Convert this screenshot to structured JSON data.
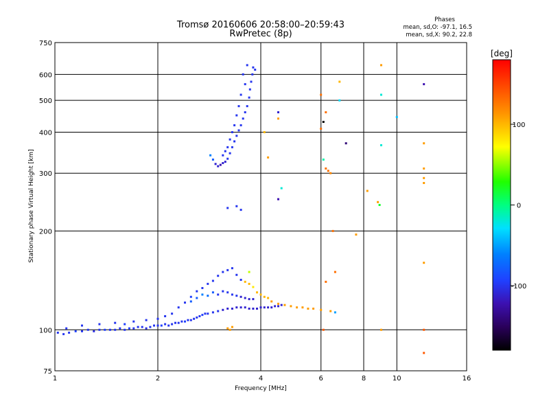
{
  "chart_data": {
    "type": "scatter",
    "title": "Tromsø 20160606 20:58:00–20:59:43",
    "subtitle": "RwPretec (8p)",
    "info": {
      "header": "Phases",
      "line1": "mean, sd,O:  -97.1, 16.5",
      "line2": "mean, sd,X:  90.2, 22.8"
    },
    "xlabel": "Frequency [MHz]",
    "ylabel": "Stationary phase Virtual Height [km]",
    "x_scale": "log",
    "y_scale": "log",
    "xlim": [
      1,
      16
    ],
    "ylim": [
      75,
      750
    ],
    "x_ticks": [
      1,
      2,
      4,
      6,
      8,
      10,
      16
    ],
    "y_ticks": [
      75,
      100,
      200,
      300,
      400,
      500,
      600,
      750
    ],
    "grid": true,
    "colorbar": {
      "label": "[deg]",
      "range": [
        -180,
        180
      ],
      "ticks": [
        100,
        0,
        -100
      ]
    },
    "series": [
      {
        "comment_free": true,
        "points": [
          [
            1.02,
            98,
            -100
          ],
          [
            1.06,
            97,
            -100
          ],
          [
            1.1,
            98,
            -100
          ],
          [
            1.15,
            99,
            -95
          ],
          [
            1.2,
            99,
            -100
          ],
          [
            1.25,
            100,
            -100
          ],
          [
            1.3,
            99,
            -105
          ],
          [
            1.35,
            100,
            -100
          ],
          [
            1.4,
            100,
            -95
          ],
          [
            1.45,
            100,
            -100
          ],
          [
            1.5,
            100,
            -100
          ],
          [
            1.55,
            101,
            -100
          ],
          [
            1.6,
            100,
            -100
          ],
          [
            1.65,
            101,
            -95
          ],
          [
            1.7,
            101,
            -100
          ],
          [
            1.75,
            102,
            -100
          ],
          [
            1.8,
            102,
            -100
          ],
          [
            1.85,
            101,
            -105
          ],
          [
            1.9,
            102,
            -100
          ],
          [
            1.95,
            103,
            -100
          ],
          [
            2.0,
            103,
            -100
          ],
          [
            2.05,
            103,
            -95
          ],
          [
            2.1,
            104,
            -100
          ],
          [
            2.15,
            103,
            -100
          ],
          [
            2.2,
            104,
            -100
          ],
          [
            2.25,
            105,
            -100
          ],
          [
            2.3,
            105,
            -100
          ],
          [
            2.35,
            106,
            -100
          ],
          [
            2.4,
            106,
            -95
          ],
          [
            2.45,
            107,
            -100
          ],
          [
            2.5,
            107,
            -100
          ],
          [
            2.55,
            108,
            -100
          ],
          [
            2.6,
            109,
            -100
          ],
          [
            2.65,
            110,
            -100
          ],
          [
            2.7,
            111,
            -95
          ],
          [
            2.75,
            112,
            -100
          ],
          [
            2.8,
            112,
            -100
          ],
          [
            2.9,
            113,
            -100
          ],
          [
            3.0,
            114,
            -100
          ],
          [
            3.1,
            115,
            -110
          ],
          [
            3.2,
            116,
            -110
          ],
          [
            3.3,
            116,
            -110
          ],
          [
            3.4,
            117,
            -110
          ],
          [
            3.5,
            117,
            -110
          ],
          [
            3.6,
            117,
            -110
          ],
          [
            3.7,
            116,
            -110
          ],
          [
            3.8,
            116,
            -110
          ],
          [
            3.9,
            116,
            -110
          ],
          [
            4.0,
            117,
            -110
          ],
          [
            4.1,
            117,
            -110
          ],
          [
            4.2,
            117,
            -110
          ],
          [
            4.3,
            117,
            -110
          ],
          [
            4.4,
            118,
            -110
          ],
          [
            4.5,
            118,
            -110
          ],
          [
            4.6,
            119,
            -110
          ],
          [
            1.08,
            101,
            -100
          ],
          [
            1.2,
            103,
            -100
          ],
          [
            1.35,
            104,
            -100
          ],
          [
            1.5,
            105,
            -100
          ],
          [
            1.6,
            104,
            -95
          ],
          [
            1.7,
            106,
            -100
          ],
          [
            1.85,
            107,
            -100
          ],
          [
            2.0,
            108,
            -100
          ],
          [
            2.1,
            110,
            -100
          ],
          [
            2.2,
            112,
            -100
          ],
          [
            2.3,
            117,
            -100
          ],
          [
            2.4,
            121,
            -100
          ],
          [
            2.5,
            126,
            -95
          ],
          [
            2.6,
            131,
            -100
          ],
          [
            2.7,
            134,
            -100
          ],
          [
            2.8,
            138,
            -100
          ],
          [
            2.9,
            141,
            -100
          ],
          [
            3.0,
            146,
            -100
          ],
          [
            3.1,
            150,
            -100
          ],
          [
            3.2,
            152,
            -100
          ],
          [
            3.3,
            154,
            -100
          ],
          [
            3.4,
            147,
            -100
          ],
          [
            3.5,
            142,
            -100
          ],
          [
            2.5,
            122,
            -80
          ],
          [
            2.6,
            125,
            -80
          ],
          [
            2.7,
            128,
            -60
          ],
          [
            2.8,
            127,
            -70
          ],
          [
            2.9,
            130,
            -80
          ],
          [
            3.0,
            128,
            -100
          ],
          [
            3.1,
            131,
            -100
          ],
          [
            3.2,
            130,
            -100
          ],
          [
            3.3,
            128,
            -100
          ],
          [
            3.4,
            127,
            -100
          ],
          [
            3.5,
            126,
            -110
          ],
          [
            3.6,
            125,
            -110
          ],
          [
            3.7,
            124,
            -110
          ],
          [
            3.8,
            124,
            -110
          ],
          [
            2.85,
            340,
            -60
          ],
          [
            2.9,
            330,
            -80
          ],
          [
            2.95,
            320,
            -110
          ],
          [
            3.0,
            315,
            -110
          ],
          [
            3.05,
            318,
            -120
          ],
          [
            3.1,
            322,
            -110
          ],
          [
            3.15,
            325,
            -110
          ],
          [
            3.2,
            332,
            -100
          ],
          [
            3.25,
            345,
            -100
          ],
          [
            3.3,
            360,
            -100
          ],
          [
            3.35,
            375,
            -100
          ],
          [
            3.4,
            390,
            -100
          ],
          [
            3.45,
            405,
            -100
          ],
          [
            3.5,
            420,
            -100
          ],
          [
            3.55,
            440,
            -100
          ],
          [
            3.6,
            460,
            -100
          ],
          [
            3.65,
            480,
            -100
          ],
          [
            3.7,
            510,
            -100
          ],
          [
            3.72,
            540,
            -100
          ],
          [
            3.75,
            570,
            -100
          ],
          [
            3.78,
            600,
            -100
          ],
          [
            3.8,
            630,
            -100
          ],
          [
            3.65,
            640,
            -100
          ],
          [
            3.85,
            620,
            -100
          ],
          [
            3.55,
            600,
            -100
          ],
          [
            3.6,
            560,
            -100
          ],
          [
            3.5,
            520,
            -100
          ],
          [
            3.45,
            480,
            -100
          ],
          [
            3.4,
            450,
            -100
          ],
          [
            3.35,
            420,
            -100
          ],
          [
            3.3,
            400,
            -100
          ],
          [
            3.25,
            380,
            -100
          ],
          [
            3.2,
            360,
            -100
          ],
          [
            3.15,
            350,
            -100
          ],
          [
            3.1,
            340,
            -100
          ],
          [
            3.2,
            235,
            -100
          ],
          [
            3.4,
            238,
            -100
          ],
          [
            3.5,
            232,
            -100
          ],
          [
            3.6,
            140,
            100
          ],
          [
            3.7,
            138,
            100
          ],
          [
            3.8,
            135,
            80
          ],
          [
            3.9,
            130,
            100
          ],
          [
            4.0,
            128,
            100
          ],
          [
            4.1,
            126,
            100
          ],
          [
            4.2,
            125,
            100
          ],
          [
            3.7,
            150,
            60
          ],
          [
            4.3,
            122,
            110
          ],
          [
            4.5,
            120,
            110
          ],
          [
            4.7,
            119,
            110
          ],
          [
            4.9,
            118,
            110
          ],
          [
            5.1,
            117,
            110
          ],
          [
            5.3,
            117,
            110
          ],
          [
            5.5,
            116,
            110
          ],
          [
            5.7,
            116,
            110
          ],
          [
            6.0,
            115,
            110
          ],
          [
            6.4,
            114,
            110
          ],
          [
            6.6,
            113,
            -50
          ],
          [
            3.2,
            101,
            110
          ],
          [
            3.25,
            100,
            110
          ],
          [
            3.3,
            102,
            110
          ],
          [
            4.5,
            440,
            110
          ],
          [
            4.5,
            460,
            -110
          ],
          [
            4.6,
            270,
            -20
          ],
          [
            4.5,
            250,
            -120
          ],
          [
            4.2,
            335,
            110
          ],
          [
            4.1,
            400,
            100
          ],
          [
            6.0,
            520,
            130
          ],
          [
            6.1,
            430,
            -180
          ],
          [
            6.2,
            460,
            130
          ],
          [
            6.0,
            410,
            130
          ],
          [
            6.1,
            330,
            -10
          ],
          [
            6.2,
            310,
            130
          ],
          [
            6.3,
            305,
            130
          ],
          [
            6.4,
            300,
            120
          ],
          [
            6.5,
            200,
            130
          ],
          [
            6.6,
            150,
            130
          ],
          [
            6.2,
            140,
            130
          ],
          [
            6.1,
            100,
            140
          ],
          [
            6.8,
            570,
            100
          ],
          [
            6.8,
            500,
            -30
          ],
          [
            7.1,
            370,
            -140
          ],
          [
            7.6,
            195,
            110
          ],
          [
            8.2,
            265,
            110
          ],
          [
            8.8,
            245,
            110
          ],
          [
            8.9,
            240,
            20
          ],
          [
            9.0,
            100,
            110
          ],
          [
            9.0,
            640,
            110
          ],
          [
            9.0,
            520,
            -20
          ],
          [
            9.0,
            365,
            -20
          ],
          [
            10.0,
            445,
            -40
          ],
          [
            12.0,
            560,
            -120
          ],
          [
            12.0,
            370,
            110
          ],
          [
            12.0,
            310,
            110
          ],
          [
            12.0,
            290,
            110
          ],
          [
            12.0,
            280,
            110
          ],
          [
            12.0,
            160,
            110
          ],
          [
            12.0,
            100,
            140
          ],
          [
            12.0,
            85,
            140
          ]
        ]
      }
    ]
  }
}
